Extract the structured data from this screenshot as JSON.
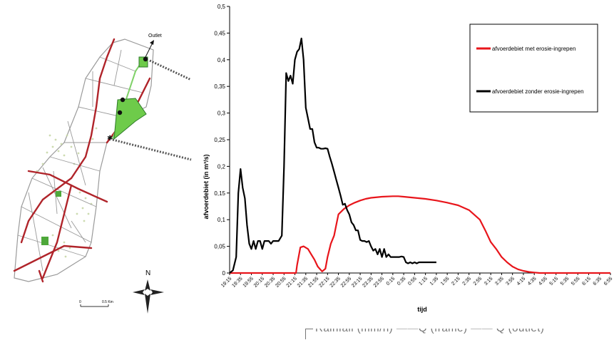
{
  "map": {
    "outlet_label": "Outlet",
    "north_label": "N",
    "scale_start": "0",
    "scale_end": "0.5 Km"
  },
  "chart_data": {
    "type": "line",
    "title": "",
    "xlabel": "tijd",
    "ylabel": "afvoerdebiet (in m³/s)",
    "ylim": [
      0,
      0.5
    ],
    "yticks": [
      "0",
      "0,05",
      "0,1",
      "0,15",
      "0,2",
      "0,25",
      "0,3",
      "0,35",
      "0,4",
      "0,45",
      "0,5"
    ],
    "categories": [
      "19:15",
      "19:35",
      "19:55",
      "20:15",
      "20:35",
      "20:55",
      "21:15",
      "21:35",
      "21:55",
      "22:15",
      "22:35",
      "22:55",
      "23:15",
      "23:35",
      "23:55",
      "0:15",
      "0:35",
      "0:55",
      "1:15",
      "1:35",
      "1:55",
      "2:15",
      "2:35",
      "2:55",
      "3:15",
      "3:35",
      "3:55",
      "4:15",
      "4:35",
      "4:55",
      "5:15",
      "5:35",
      "5:55",
      "6:15",
      "6:35",
      "6:55"
    ],
    "grid": false,
    "legend": "top-right",
    "series": [
      {
        "name": "afvoerdebiet met erosie-ingrepen",
        "color": "#e8151b",
        "x": [
          0,
          6.1,
          6.2,
          6.5,
          6.8,
          7.2,
          7.5,
          7.8,
          8.1,
          8.5,
          8.8,
          9.0,
          9.3,
          9.6,
          9.8,
          10.0,
          10.5,
          11.0,
          11.5,
          12.0,
          12.5,
          13.0,
          14.0,
          15.0,
          15.5,
          16.0,
          17.0,
          18.0,
          19.0,
          20.0,
          21.0,
          22.0,
          23.0,
          23.5,
          24.0,
          24.5,
          25.0,
          25.5,
          26.0,
          26.5,
          27.0,
          27.5,
          28.0,
          28.5,
          29.0,
          30.0,
          31.0,
          32.0,
          33.0,
          34.0,
          35.0
        ],
        "y": [
          0,
          0,
          0.015,
          0.048,
          0.05,
          0.045,
          0.035,
          0.025,
          0.012,
          0.003,
          0.008,
          0.03,
          0.055,
          0.07,
          0.09,
          0.11,
          0.12,
          0.127,
          0.132,
          0.136,
          0.139,
          0.141,
          0.143,
          0.144,
          0.144,
          0.143,
          0.141,
          0.139,
          0.136,
          0.132,
          0.127,
          0.118,
          0.1,
          0.08,
          0.058,
          0.045,
          0.03,
          0.02,
          0.012,
          0.007,
          0.004,
          0.002,
          0.001,
          0,
          0,
          0,
          0,
          0,
          0,
          0,
          0
        ]
      },
      {
        "name": "afvoerdebiet zonder erosie-ingrepen",
        "color": "#000000",
        "x": [
          0,
          0.3,
          0.6,
          0.8,
          1.0,
          1.2,
          1.4,
          1.6,
          1.8,
          2.0,
          2.2,
          2.4,
          2.6,
          2.8,
          3.0,
          3.2,
          3.4,
          3.6,
          3.8,
          4.0,
          4.2,
          4.5,
          4.8,
          5.0,
          5.2,
          5.4,
          5.6,
          5.8,
          6.0,
          6.2,
          6.4,
          6.6,
          6.8,
          7.0,
          7.2,
          7.4,
          7.6,
          7.8,
          8.0,
          8.2,
          8.4,
          8.6,
          8.8,
          9.0,
          9.2,
          9.4,
          9.6,
          9.8,
          10.0,
          10.2,
          10.4,
          10.6,
          10.8,
          11.0,
          11.2,
          11.4,
          11.6,
          11.8,
          12.0,
          12.2,
          12.4,
          12.6,
          12.8,
          13.0,
          13.2,
          13.4,
          13.6,
          13.8,
          14.0,
          14.2,
          14.4,
          14.6,
          14.8,
          15.0,
          15.2,
          15.4,
          15.6,
          15.8,
          16.0,
          16.2,
          16.4,
          16.6,
          16.8,
          17.0,
          17.2,
          17.4,
          17.6,
          18.0,
          18.4,
          18.6,
          19.0
        ],
        "y": [
          0,
          0.005,
          0.03,
          0.15,
          0.195,
          0.16,
          0.14,
          0.09,
          0.055,
          0.045,
          0.06,
          0.045,
          0.06,
          0.06,
          0.045,
          0.06,
          0.06,
          0.06,
          0.055,
          0.06,
          0.06,
          0.06,
          0.07,
          0.2,
          0.375,
          0.36,
          0.37,
          0.355,
          0.4,
          0.415,
          0.42,
          0.44,
          0.4,
          0.31,
          0.29,
          0.27,
          0.27,
          0.245,
          0.235,
          0.235,
          0.233,
          0.233,
          0.234,
          0.233,
          0.218,
          0.205,
          0.19,
          0.175,
          0.16,
          0.145,
          0.128,
          0.13,
          0.118,
          0.11,
          0.095,
          0.09,
          0.08,
          0.08,
          0.062,
          0.06,
          0.06,
          0.058,
          0.06,
          0.05,
          0.042,
          0.045,
          0.035,
          0.045,
          0.03,
          0.045,
          0.03,
          0.035,
          0.03,
          0.03,
          0.03,
          0.03,
          0.03,
          0.031,
          0.03,
          0.02,
          0.018,
          0.02,
          0.018,
          0.02,
          0.018,
          0.02,
          0.02,
          0.02,
          0.02,
          0.02,
          0.02
        ]
      }
    ]
  },
  "bottom_fragment": "Rainfall (mm/h) ——Q (frame) —— Q (outlet)"
}
